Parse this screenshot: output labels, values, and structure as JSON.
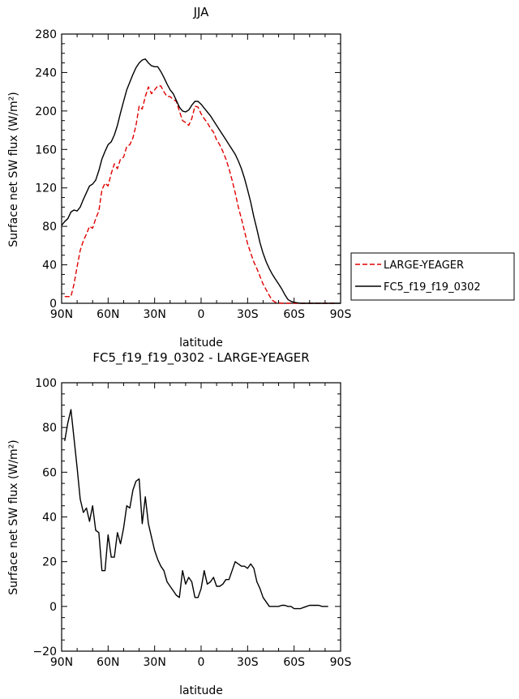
{
  "chart_data": [
    {
      "type": "line",
      "title": "JJA",
      "xlabel": "latitude",
      "ylabel": "Surface net SW flux (W/m²)",
      "xlim": [
        90,
        -90
      ],
      "ylim": [
        0,
        280
      ],
      "x_ticks": [
        "90N",
        "60N",
        "30N",
        "0",
        "30S",
        "60S",
        "90S"
      ],
      "y_ticks": [
        0,
        40,
        80,
        120,
        160,
        200,
        240,
        280
      ],
      "legend_position": "right",
      "series": [
        {
          "name": "LARGE-YEAGER",
          "color": "#e00000",
          "style": "dashed",
          "x": [
            88,
            84,
            82,
            80,
            78,
            76,
            74,
            72,
            70,
            68,
            66,
            64,
            62,
            60,
            58,
            56,
            54,
            52,
            50,
            48,
            46,
            44,
            42,
            40,
            38,
            36,
            34,
            32,
            30,
            28,
            26,
            24,
            22,
            20,
            18,
            16,
            14,
            12,
            10,
            8,
            6,
            4,
            2,
            0,
            -2,
            -4,
            -6,
            -8,
            -10,
            -12,
            -14,
            -16,
            -18,
            -20,
            -22,
            -24,
            -26,
            -28,
            -30,
            -32,
            -34,
            -36,
            -38,
            -40,
            -42,
            -44,
            -46,
            -48,
            -50,
            -52,
            -54,
            -56,
            -58,
            -60,
            -62,
            -64,
            -66,
            -68,
            -70,
            -72,
            -74,
            -76,
            -78,
            -80,
            -82,
            -84,
            -86,
            -88
          ],
          "values": [
            7,
            7,
            20,
            38,
            55,
            65,
            72,
            80,
            78,
            88,
            96,
            118,
            125,
            122,
            135,
            145,
            140,
            150,
            152,
            163,
            165,
            172,
            185,
            205,
            202,
            215,
            225,
            218,
            222,
            226,
            226,
            220,
            215,
            215,
            212,
            210,
            200,
            190,
            188,
            185,
            192,
            205,
            204,
            197,
            192,
            188,
            182,
            178,
            170,
            165,
            158,
            150,
            140,
            128,
            115,
            100,
            88,
            75,
            62,
            52,
            43,
            36,
            28,
            20,
            14,
            8,
            3,
            1,
            0.5,
            0,
            0,
            0,
            0,
            0,
            0,
            0,
            0,
            0,
            0,
            0,
            0,
            0,
            0,
            0,
            0,
            0,
            0,
            0
          ]
        },
        {
          "name": "FC5_f19_f19_0302",
          "color": "#000000",
          "style": "solid",
          "x": [
            90,
            88,
            86,
            84,
            82,
            80,
            78,
            76,
            74,
            72,
            70,
            68,
            66,
            64,
            62,
            60,
            58,
            56,
            54,
            52,
            50,
            48,
            46,
            44,
            42,
            40,
            38,
            36,
            34,
            32,
            30,
            28,
            26,
            24,
            22,
            20,
            18,
            16,
            14,
            12,
            10,
            8,
            6,
            4,
            2,
            0,
            -2,
            -4,
            -6,
            -8,
            -10,
            -12,
            -14,
            -16,
            -18,
            -20,
            -22,
            -24,
            -26,
            -28,
            -30,
            -32,
            -34,
            -36,
            -38,
            -40,
            -42,
            -44,
            -46,
            -48,
            -50,
            -52,
            -54,
            -56,
            -58,
            -60,
            -62,
            -64,
            -66,
            -68,
            -70,
            -72,
            -74,
            -76,
            -78,
            -80,
            -82,
            -84,
            -86,
            -88,
            -90
          ],
          "values": [
            81,
            85,
            88,
            95,
            97,
            96,
            100,
            108,
            115,
            122,
            124,
            128,
            138,
            150,
            158,
            165,
            168,
            175,
            185,
            198,
            210,
            222,
            230,
            238,
            245,
            250,
            253,
            254,
            250,
            247,
            246,
            246,
            241,
            235,
            228,
            222,
            218,
            211,
            204,
            200,
            199,
            201,
            206,
            210,
            210,
            207,
            203,
            199,
            195,
            190,
            185,
            180,
            175,
            170,
            165,
            160,
            155,
            148,
            140,
            130,
            118,
            105,
            90,
            77,
            63,
            52,
            43,
            36,
            30,
            25,
            20,
            15,
            9,
            4,
            2,
            1,
            0.5,
            0,
            0,
            0,
            0,
            0,
            0,
            0,
            0,
            0,
            0,
            0,
            0,
            0,
            0
          ]
        }
      ]
    },
    {
      "type": "line",
      "title": "FC5_f19_f19_0302 - LARGE-YEAGER",
      "xlabel": "latitude",
      "ylabel": "Surface net SW flux (W/m²)",
      "xlim": [
        90,
        -90
      ],
      "ylim": [
        -20,
        100
      ],
      "x_ticks": [
        "90N",
        "60N",
        "30N",
        "0",
        "30S",
        "60S",
        "90S"
      ],
      "y_ticks": [
        -20,
        0,
        20,
        40,
        60,
        80,
        100
      ],
      "series": [
        {
          "name": "",
          "color": "#000000",
          "style": "solid",
          "x": [
            88,
            86,
            84,
            82,
            80,
            78,
            76,
            74,
            72,
            70,
            68,
            66,
            64,
            62,
            60,
            58,
            56,
            54,
            52,
            50,
            48,
            46,
            44,
            42,
            40,
            38,
            36,
            34,
            32,
            30,
            28,
            26,
            24,
            22,
            20,
            18,
            16,
            14,
            12,
            10,
            8,
            6,
            4,
            2,
            0,
            -2,
            -4,
            -6,
            -8,
            -10,
            -12,
            -14,
            -16,
            -18,
            -20,
            -22,
            -24,
            -26,
            -28,
            -30,
            -32,
            -34,
            -36,
            -38,
            -40,
            -42,
            -44,
            -46,
            -48,
            -50,
            -52,
            -54,
            -56,
            -58,
            -60,
            -62,
            -64,
            -66,
            -68,
            -70,
            -72,
            -74,
            -76,
            -78,
            -80,
            -82
          ],
          "values": [
            74,
            82,
            88,
            75,
            62,
            48,
            42,
            44,
            38,
            45,
            34,
            33,
            16,
            16,
            32,
            22,
            22,
            33,
            28,
            35,
            45,
            44,
            52,
            56,
            57,
            37,
            49,
            37,
            31,
            25,
            21,
            18,
            16,
            11,
            9,
            7,
            5,
            4,
            16,
            10,
            13,
            11,
            4,
            4,
            8,
            16,
            10,
            11,
            13,
            9,
            9,
            10,
            12,
            12,
            16,
            20,
            19,
            18,
            18,
            17,
            19,
            17,
            11,
            8,
            4,
            2,
            0,
            0,
            0,
            0,
            0.5,
            0.5,
            0,
            0,
            -1,
            -1,
            -1,
            -0.5,
            0,
            0.5,
            0.5,
            0.5,
            0.5,
            0,
            0,
            0
          ]
        }
      ]
    }
  ]
}
